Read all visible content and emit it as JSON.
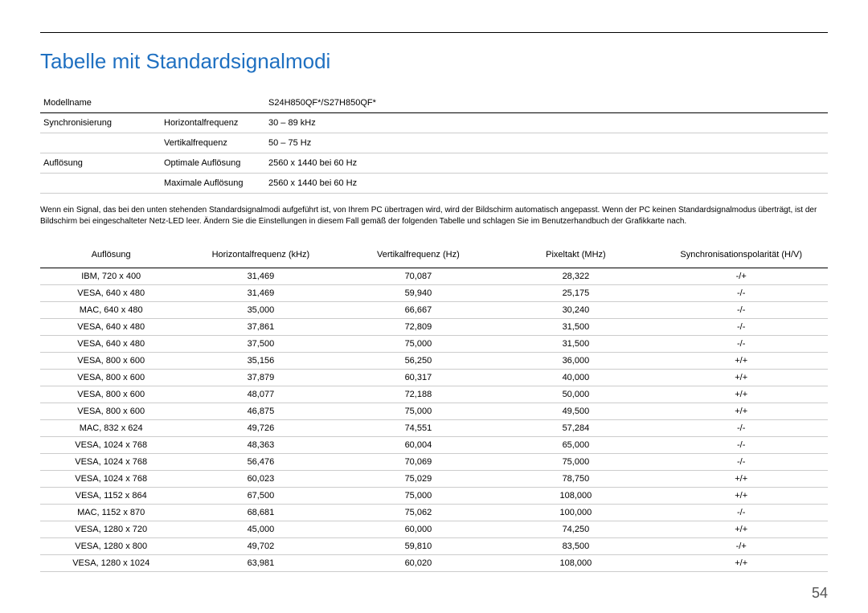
{
  "title": "Tabelle mit Standardsignalmodi",
  "spec": {
    "model_label": "Modellname",
    "model_value": "S24H850QF*/S27H850QF*",
    "sync_label": "Synchronisierung",
    "hfreq_label": "Horizontalfrequenz",
    "hfreq_value": "30 – 89 kHz",
    "vfreq_label": "Vertikalfrequenz",
    "vfreq_value": "50 – 75 Hz",
    "res_label": "Auflösung",
    "opt_label": "Optimale Auflösung",
    "opt_value": "2560 x 1440 bei 60 Hz",
    "max_label": "Maximale Auflösung",
    "max_value": "2560 x 1440 bei 60 Hz"
  },
  "note": "Wenn ein Signal, das bei den unten stehenden Standardsignalmodi aufgeführt ist, von Ihrem PC übertragen wird, wird der Bildschirm automatisch angepasst. Wenn der PC keinen Standardsignalmodus überträgt, ist der Bildschirm bei eingeschalteter Netz-LED leer. Ändern Sie die Einstellungen in diesem Fall gemäß der folgenden Tabelle und schlagen Sie im Benutzerhandbuch der Grafikkarte nach.",
  "signal_table": {
    "columns": [
      "Auflösung",
      "Horizontalfrequenz (kHz)",
      "Vertikalfrequenz (Hz)",
      "Pixeltakt (MHz)",
      "Synchronisationspolarität (H/V)"
    ],
    "rows": [
      [
        "IBM, 720 x 400",
        "31,469",
        "70,087",
        "28,322",
        "-/+"
      ],
      [
        "VESA, 640 x 480",
        "31,469",
        "59,940",
        "25,175",
        "-/-"
      ],
      [
        "MAC, 640 x 480",
        "35,000",
        "66,667",
        "30,240",
        "-/-"
      ],
      [
        "VESA, 640 x 480",
        "37,861",
        "72,809",
        "31,500",
        "-/-"
      ],
      [
        "VESA, 640 x 480",
        "37,500",
        "75,000",
        "31,500",
        "-/-"
      ],
      [
        "VESA, 800 x 600",
        "35,156",
        "56,250",
        "36,000",
        "+/+"
      ],
      [
        "VESA, 800 x 600",
        "37,879",
        "60,317",
        "40,000",
        "+/+"
      ],
      [
        "VESA, 800 x 600",
        "48,077",
        "72,188",
        "50,000",
        "+/+"
      ],
      [
        "VESA, 800 x 600",
        "46,875",
        "75,000",
        "49,500",
        "+/+"
      ],
      [
        "MAC, 832 x 624",
        "49,726",
        "74,551",
        "57,284",
        "-/-"
      ],
      [
        "VESA, 1024 x 768",
        "48,363",
        "60,004",
        "65,000",
        "-/-"
      ],
      [
        "VESA, 1024 x 768",
        "56,476",
        "70,069",
        "75,000",
        "-/-"
      ],
      [
        "VESA, 1024 x 768",
        "60,023",
        "75,029",
        "78,750",
        "+/+"
      ],
      [
        "VESA, 1152 x 864",
        "67,500",
        "75,000",
        "108,000",
        "+/+"
      ],
      [
        "MAC, 1152 x 870",
        "68,681",
        "75,062",
        "100,000",
        "-/-"
      ],
      [
        "VESA, 1280 x 720",
        "45,000",
        "60,000",
        "74,250",
        "+/+"
      ],
      [
        "VESA, 1280 x 800",
        "49,702",
        "59,810",
        "83,500",
        "-/+"
      ],
      [
        "VESA, 1280 x 1024",
        "63,981",
        "60,020",
        "108,000",
        "+/+"
      ]
    ]
  },
  "page_number": "54",
  "colors": {
    "heading": "#1f70c1",
    "text": "#000000",
    "rule_strong": "#000000",
    "rule_light": "#cccccc",
    "background": "#ffffff"
  }
}
